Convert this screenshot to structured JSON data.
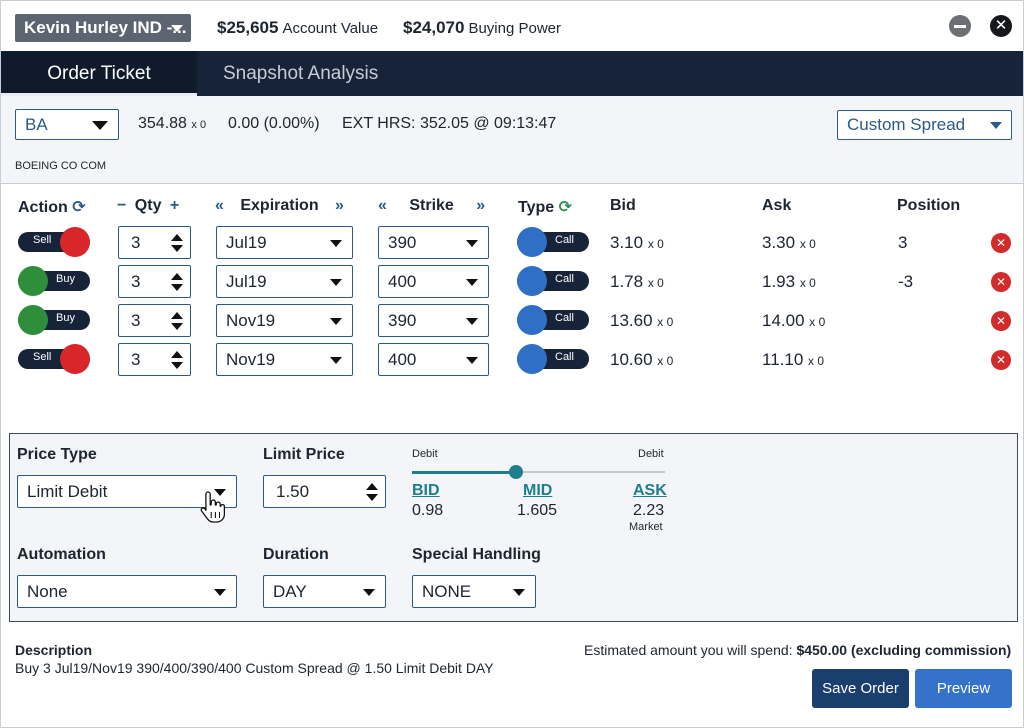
{
  "header": {
    "account": "Kevin Hurley IND -...",
    "account_value": "$25,605",
    "account_value_label": "Account Value",
    "buying_power": "$24,070",
    "buying_power_label": "Buying Power",
    "close_glyph": "✕"
  },
  "tabs": [
    {
      "label": "Order Ticket",
      "active": true
    },
    {
      "label": "Snapshot Analysis",
      "active": false
    }
  ],
  "symbol": {
    "ticker": "BA",
    "last": "354.88",
    "last_size": "x 0",
    "change": "0.00 (0.00%)",
    "ext_hrs": "EXT HRS: 352.05 @ 09:13:47",
    "company": "BOEING CO COM",
    "strategy": "Custom Spread"
  },
  "legs_header": {
    "action": "Action",
    "qty": "Qty",
    "qty_minus": "−",
    "qty_plus": "+",
    "expiration": "Expiration",
    "strike": "Strike",
    "prev": "«",
    "next": "»",
    "type": "Type",
    "refresh_glyph": "⟳",
    "bid": "Bid",
    "ask": "Ask",
    "position": "Position"
  },
  "legs": [
    {
      "action": "Sell",
      "qty": "3",
      "expiration": "Jul19",
      "strike": "390",
      "type": "Call",
      "bid": "3.10",
      "bid_size": "x 0",
      "ask": "3.30",
      "ask_size": "x 0",
      "position": "3"
    },
    {
      "action": "Buy",
      "qty": "3",
      "expiration": "Jul19",
      "strike": "400",
      "type": "Call",
      "bid": "1.78",
      "bid_size": "x 0",
      "ask": "1.93",
      "ask_size": "x 0",
      "position": "-3"
    },
    {
      "action": "Buy",
      "qty": "3",
      "expiration": "Nov19",
      "strike": "390",
      "type": "Call",
      "bid": "13.60",
      "bid_size": "x 0",
      "ask": "14.00",
      "ask_size": "x 0",
      "position": ""
    },
    {
      "action": "Sell",
      "qty": "3",
      "expiration": "Nov19",
      "strike": "400",
      "type": "Call",
      "bid": "10.60",
      "bid_size": "x 0",
      "ask": "11.10",
      "ask_size": "x 0",
      "position": ""
    }
  ],
  "remove_glyph": "✕",
  "order": {
    "price_type_label": "Price Type",
    "price_type": "Limit Debit",
    "limit_price_label": "Limit Price",
    "limit_price": "1.50",
    "slider_left": "Debit",
    "slider_right": "Debit",
    "slider_position": 0.41,
    "bid_label": "BID",
    "bid": "0.98",
    "mid_label": "MID",
    "mid": "1.605",
    "ask_label": "ASK",
    "ask": "2.23",
    "market_label": "Market",
    "automation_label": "Automation",
    "automation": "None",
    "duration_label": "Duration",
    "duration": "DAY",
    "special_label": "Special Handling",
    "special": "NONE"
  },
  "footer": {
    "description_label": "Description",
    "description": "Buy 3 Jul19/Nov19 390/400/390/400 Custom Spread @ 1.50 Limit Debit DAY",
    "estimate_label": "Estimated amount you will spend:",
    "estimate_value": "$450.00 (excluding commission)",
    "save_label": "Save Order",
    "preview_label": "Preview"
  },
  "colors": {
    "navy": "#162338",
    "teal": "#1d7f8c",
    "sell_red": "#d8262b",
    "buy_green": "#2e8e3a",
    "call_blue": "#2f6fc6"
  }
}
